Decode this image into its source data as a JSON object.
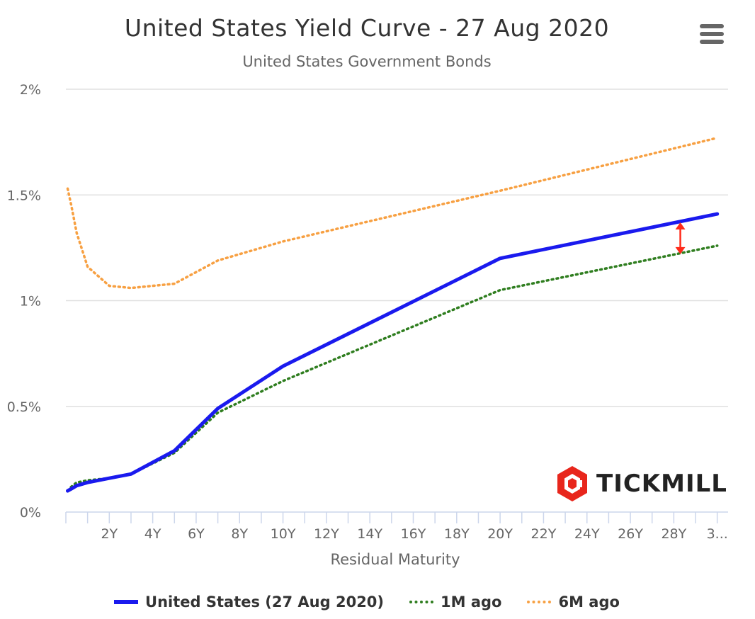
{
  "header": {
    "title": "United States Yield Curve - 27 Aug 2020",
    "subtitle": "United States Government Bonds",
    "menu_icon": "hamburger-menu-icon"
  },
  "logo": {
    "text": "TICKMILL",
    "icon": "tickmill-hexagon-logo"
  },
  "colors": {
    "us": "#1a1aee",
    "m1": "#2e7d1e",
    "m6": "#f7a042",
    "arrow": "#ff2a1a",
    "grid": "#e0e0e0"
  },
  "chart_data": {
    "type": "line",
    "title": "United States Yield Curve - 27 Aug 2020",
    "subtitle": "United States Government Bonds",
    "xlabel": "Residual Maturity",
    "ylabel": "",
    "x_unit": "years",
    "xlim": [
      0,
      30.5
    ],
    "ylim": [
      0,
      2
    ],
    "y_ticks": [
      {
        "value": 0,
        "label": "0%"
      },
      {
        "value": 0.5,
        "label": "0.5%"
      },
      {
        "value": 1,
        "label": "1%"
      },
      {
        "value": 1.5,
        "label": "1.5%"
      },
      {
        "value": 2,
        "label": "2%"
      }
    ],
    "x_ticks": [
      {
        "value": 2,
        "label": "2Y"
      },
      {
        "value": 4,
        "label": "4Y"
      },
      {
        "value": 6,
        "label": "6Y"
      },
      {
        "value": 8,
        "label": "8Y"
      },
      {
        "value": 10,
        "label": "10Y"
      },
      {
        "value": 12,
        "label": "12Y"
      },
      {
        "value": 14,
        "label": "14Y"
      },
      {
        "value": 16,
        "label": "16Y"
      },
      {
        "value": 18,
        "label": "18Y"
      },
      {
        "value": 20,
        "label": "20Y"
      },
      {
        "value": 22,
        "label": "22Y"
      },
      {
        "value": 24,
        "label": "24Y"
      },
      {
        "value": 26,
        "label": "26Y"
      },
      {
        "value": 28,
        "label": "28Y"
      },
      {
        "value": 30,
        "label": "3..."
      }
    ],
    "grid": true,
    "legend_position": "bottom",
    "series": [
      {
        "name": "United States (27 Aug 2020)",
        "style": "solid",
        "x": [
          0.08,
          0.25,
          0.5,
          1,
          2,
          3,
          5,
          7,
          10,
          20,
          30
        ],
        "y": [
          0.1,
          0.11,
          0.125,
          0.14,
          0.16,
          0.18,
          0.29,
          0.49,
          0.69,
          1.2,
          1.41
        ]
      },
      {
        "name": "1M ago",
        "style": "dotted",
        "x": [
          0.08,
          0.25,
          0.5,
          1,
          2,
          3,
          5,
          7,
          10,
          20,
          30
        ],
        "y": [
          0.1,
          0.12,
          0.14,
          0.15,
          0.16,
          0.18,
          0.28,
          0.47,
          0.62,
          1.05,
          1.26
        ]
      },
      {
        "name": "6M ago",
        "style": "dotted",
        "x": [
          0.08,
          0.25,
          0.5,
          1,
          2,
          3,
          5,
          7,
          10,
          20,
          30
        ],
        "y": [
          1.53,
          1.45,
          1.32,
          1.16,
          1.07,
          1.06,
          1.08,
          1.19,
          1.28,
          1.52,
          1.77
        ]
      }
    ],
    "annotation": {
      "type": "double-arrow",
      "x": 28.3,
      "y_from": 1.22,
      "y_to": 1.37
    }
  }
}
